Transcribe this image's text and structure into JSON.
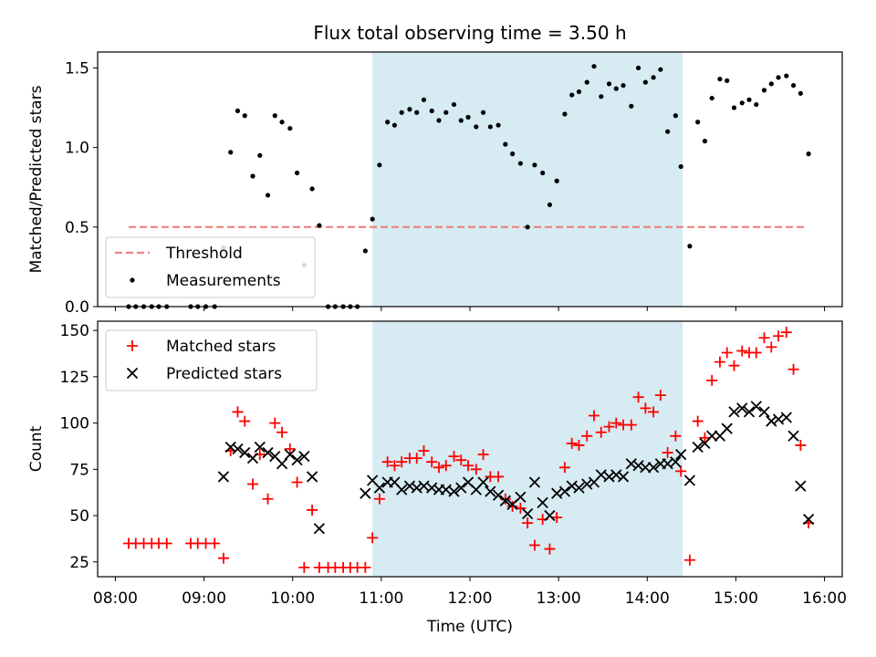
{
  "title": "Flux total observing time = 3.50 h",
  "colors": {
    "threshold": "#f08080",
    "measurement": "#000000",
    "matched": "#ff0000",
    "predicted": "#000000",
    "shade": "#add8e6"
  },
  "chart_data": [
    {
      "type": "scatter",
      "ylabel": "Matched/Predicted stars",
      "xlim": [
        7.8,
        16.2
      ],
      "ylim": [
        0,
        1.6
      ],
      "yticks": [
        0,
        0.5,
        1.0,
        1.5
      ],
      "ytick_labels": [
        "0.0",
        "0.5",
        "1.0",
        "1.5"
      ],
      "shaded_span": [
        10.9,
        14.4
      ],
      "threshold": {
        "name": "Threshold",
        "value": 0.5,
        "x_range": [
          8.15,
          15.8
        ]
      },
      "legend": {
        "position": "lower-left",
        "entries": [
          "Threshold",
          "Measurements"
        ]
      },
      "series": [
        {
          "name": "Measurements",
          "x": [
            8.15,
            8.23,
            8.32,
            8.41,
            8.49,
            8.58,
            8.85,
            8.93,
            9.02,
            9.12,
            9.22,
            9.3,
            9.38,
            9.46,
            9.55,
            9.63,
            9.72,
            9.8,
            9.88,
            9.97,
            10.05,
            10.13,
            10.22,
            10.3,
            10.4,
            10.48,
            10.57,
            10.65,
            10.73,
            10.82,
            10.9,
            10.98,
            11.07,
            11.15,
            11.23,
            11.32,
            11.4,
            11.48,
            11.57,
            11.65,
            11.73,
            11.82,
            11.9,
            11.98,
            12.07,
            12.15,
            12.23,
            12.32,
            12.4,
            12.48,
            12.57,
            12.65,
            12.73,
            12.82,
            12.9,
            12.98,
            13.07,
            13.15,
            13.23,
            13.32,
            13.4,
            13.48,
            13.57,
            13.65,
            13.73,
            13.82,
            13.9,
            13.98,
            14.07,
            14.15,
            14.23,
            14.32,
            14.38,
            14.48,
            14.57,
            14.65,
            14.73,
            14.82,
            14.9,
            14.98,
            15.07,
            15.15,
            15.23,
            15.32,
            15.4,
            15.48,
            15.57,
            15.65,
            15.73,
            15.82
          ],
          "y": [
            0.0,
            0.0,
            0.0,
            0.0,
            0.0,
            0.0,
            0.0,
            0.0,
            0.0,
            0.0,
            0.37,
            0.97,
            1.23,
            1.2,
            0.82,
            0.95,
            0.7,
            1.2,
            1.16,
            1.12,
            0.84,
            0.26,
            0.74,
            0.51,
            0.0,
            0.0,
            0.0,
            0.0,
            0.0,
            0.35,
            0.55,
            0.89,
            1.16,
            1.14,
            1.22,
            1.24,
            1.22,
            1.3,
            1.23,
            1.17,
            1.22,
            1.27,
            1.17,
            1.19,
            1.13,
            1.22,
            1.13,
            1.14,
            1.02,
            0.96,
            0.9,
            0.5,
            0.89,
            0.84,
            0.64,
            0.79,
            1.21,
            1.33,
            1.35,
            1.41,
            1.51,
            1.32,
            1.4,
            1.37,
            1.39,
            1.26,
            1.5,
            1.41,
            1.44,
            1.49,
            1.1,
            1.2,
            0.88,
            0.38,
            1.16,
            1.04,
            1.31,
            1.43,
            1.42,
            1.25,
            1.28,
            1.3,
            1.27,
            1.36,
            1.4,
            1.44,
            1.45,
            1.39,
            1.34,
            0.96
          ]
        }
      ]
    },
    {
      "type": "scatter",
      "xlabel": "Time (UTC)",
      "ylabel": "Count",
      "xlim": [
        7.8,
        16.2
      ],
      "ylim": [
        17,
        155
      ],
      "xticks": [
        8,
        9,
        10,
        11,
        12,
        13,
        14,
        15,
        16
      ],
      "xtick_labels": [
        "08:00",
        "09:00",
        "10:00",
        "11:00",
        "12:00",
        "13:00",
        "14:00",
        "15:00",
        "16:00"
      ],
      "yticks": [
        25,
        50,
        75,
        100,
        125,
        150
      ],
      "ytick_labels": [
        "25",
        "50",
        "75",
        "100",
        "125",
        "150"
      ],
      "shaded_span": [
        10.9,
        14.4
      ],
      "legend": {
        "position": "upper-left",
        "entries": [
          "Matched stars",
          "Predicted stars"
        ]
      },
      "series": [
        {
          "name": "Matched stars",
          "marker": "plus",
          "x": [
            8.15,
            8.23,
            8.32,
            8.41,
            8.49,
            8.58,
            8.85,
            8.93,
            9.02,
            9.12,
            9.22,
            9.3,
            9.38,
            9.46,
            9.55,
            9.63,
            9.72,
            9.8,
            9.88,
            9.97,
            10.05,
            10.13,
            10.22,
            10.3,
            10.4,
            10.48,
            10.57,
            10.65,
            10.73,
            10.82,
            10.9,
            10.98,
            11.07,
            11.15,
            11.23,
            11.32,
            11.4,
            11.48,
            11.57,
            11.65,
            11.73,
            11.82,
            11.9,
            11.98,
            12.07,
            12.15,
            12.23,
            12.32,
            12.4,
            12.48,
            12.57,
            12.65,
            12.73,
            12.82,
            12.9,
            12.98,
            13.07,
            13.15,
            13.23,
            13.32,
            13.4,
            13.48,
            13.57,
            13.65,
            13.73,
            13.82,
            13.9,
            13.98,
            14.07,
            14.15,
            14.23,
            14.32,
            14.38,
            14.48,
            14.57,
            14.65,
            14.73,
            14.82,
            14.9,
            14.98,
            15.07,
            15.15,
            15.23,
            15.32,
            15.4,
            15.48,
            15.57,
            15.65,
            15.73,
            15.82
          ],
          "y": [
            35,
            35,
            35,
            35,
            35,
            35,
            35,
            35,
            35,
            35,
            27,
            85,
            106,
            101,
            67,
            83,
            59,
            100,
            95,
            86,
            68,
            22,
            53,
            22,
            22,
            22,
            22,
            22,
            22,
            22,
            38,
            59,
            79,
            77,
            79,
            81,
            81,
            85,
            79,
            76,
            77,
            82,
            80,
            77,
            75,
            83,
            71,
            71,
            59,
            55,
            54,
            46,
            34,
            48,
            32,
            49,
            76,
            89,
            88,
            93,
            104,
            95,
            98,
            100,
            99,
            99,
            114,
            108,
            106,
            115,
            84,
            93,
            74,
            26,
            101,
            92,
            123,
            133,
            138,
            131,
            139,
            138,
            138,
            146,
            141,
            147,
            149,
            129,
            88,
            46
          ]
        },
        {
          "name": "Predicted stars",
          "marker": "x",
          "x": [
            9.22,
            9.3,
            9.38,
            9.46,
            9.55,
            9.63,
            9.72,
            9.8,
            9.88,
            9.97,
            10.05,
            10.13,
            10.22,
            10.3,
            10.82,
            10.9,
            10.98,
            11.07,
            11.15,
            11.23,
            11.32,
            11.4,
            11.48,
            11.57,
            11.65,
            11.73,
            11.82,
            11.9,
            11.98,
            12.07,
            12.15,
            12.23,
            12.32,
            12.4,
            12.48,
            12.57,
            12.65,
            12.73,
            12.82,
            12.9,
            12.98,
            13.07,
            13.15,
            13.23,
            13.32,
            13.4,
            13.48,
            13.57,
            13.65,
            13.73,
            13.82,
            13.9,
            13.98,
            14.07,
            14.15,
            14.23,
            14.32,
            14.38,
            14.48,
            14.57,
            14.65,
            14.73,
            14.82,
            14.9,
            14.98,
            15.07,
            15.15,
            15.23,
            15.32,
            15.4,
            15.48,
            15.57,
            15.65,
            15.73,
            15.82
          ],
          "y": [
            71,
            87,
            86,
            84,
            81,
            87,
            84,
            82,
            78,
            83,
            80,
            82,
            71,
            43,
            62,
            69,
            65,
            68,
            68,
            64,
            66,
            65,
            66,
            65,
            64,
            64,
            63,
            65,
            68,
            64,
            68,
            63,
            61,
            58,
            56,
            60,
            51,
            68,
            57,
            50,
            62,
            63,
            66,
            65,
            67,
            68,
            72,
            71,
            72,
            71,
            78,
            77,
            76,
            76,
            78,
            78,
            79,
            83,
            69,
            87,
            89,
            93,
            93,
            97,
            106,
            108,
            106,
            109,
            106,
            101,
            102,
            103,
            93,
            66,
            48
          ]
        }
      ]
    }
  ]
}
